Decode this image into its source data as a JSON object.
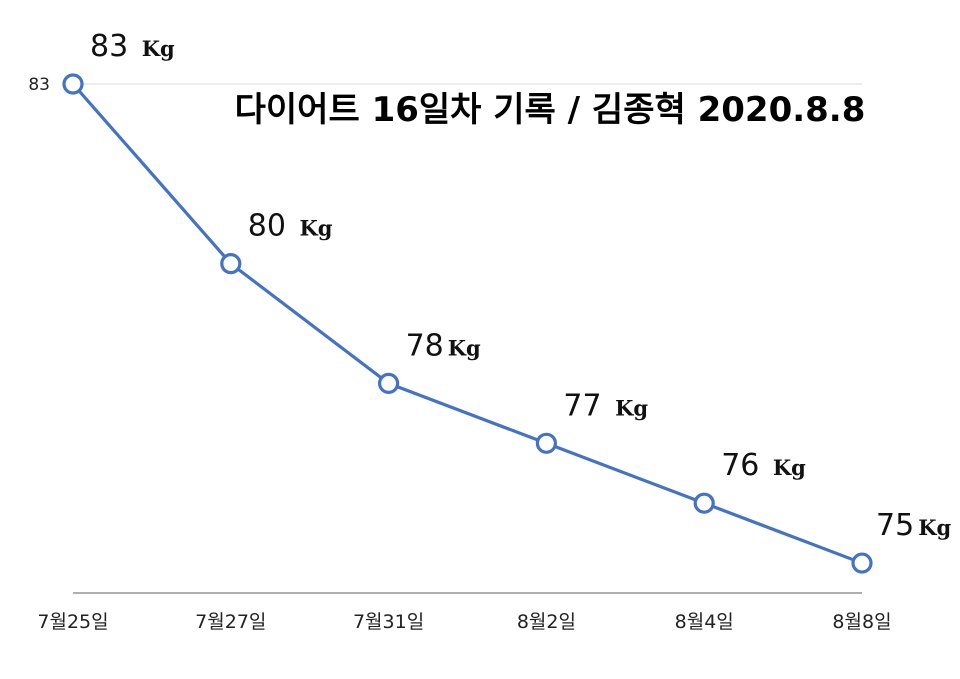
{
  "chart_data": {
    "type": "line",
    "title": "다이어트 16일차 기록 / 김종혁 2020.8.8",
    "xlabel": "",
    "ylabel": "",
    "categories": [
      "7월25일",
      "7월27일",
      "7월31일",
      "8월2일",
      "8월4일",
      "8월8일"
    ],
    "series": [
      {
        "values": [
          83,
          80,
          78,
          77,
          76,
          75
        ],
        "color": "#4472C4"
      }
    ],
    "data_labels": [
      {
        "value": "83",
        "unit": "Kg",
        "sep": " "
      },
      {
        "value": "80",
        "unit": "Kg",
        "sep": " "
      },
      {
        "value": "78",
        "unit": "Kg",
        "sep": ""
      },
      {
        "value": "77",
        "unit": "Kg",
        "sep": " "
      },
      {
        "value": "76",
        "unit": "Kg",
        "sep": " "
      },
      {
        "value": "75",
        "unit": "Kg",
        "sep": ""
      }
    ],
    "y_ticks": [
      83
    ],
    "ylim": [
      74.5,
      83
    ],
    "grid": "top gridline only",
    "legend": "none",
    "marker": "hollow circle"
  }
}
